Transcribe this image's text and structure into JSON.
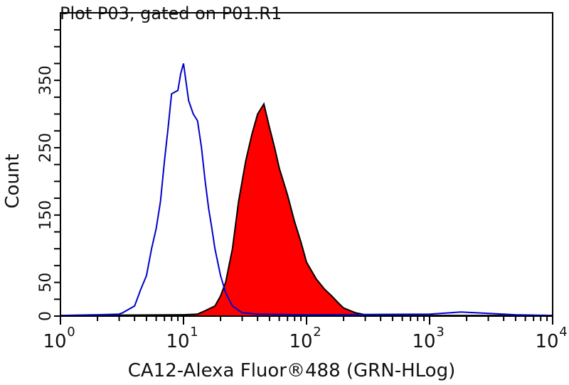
{
  "chart_data": {
    "type": "area",
    "title": "Plot P03, gated on P01.R1",
    "xlabel": "CA12-Alexa Fluor®488 (GRN-HLog)",
    "ylabel": "Count",
    "xscale": "log",
    "xlim": [
      1,
      10000
    ],
    "ylim": [
      0,
      425
    ],
    "x_ticks": [
      {
        "base": "10",
        "exp": "0"
      },
      {
        "base": "10",
        "exp": "1"
      },
      {
        "base": "10",
        "exp": "2"
      },
      {
        "base": "10",
        "exp": "3"
      },
      {
        "base": "10",
        "exp": "4"
      }
    ],
    "y_tick_labels": [
      "0",
      "50",
      "150",
      "250",
      "350"
    ],
    "grid": false,
    "series": [
      {
        "style": "line",
        "color": "#0000cc",
        "x": [
          1,
          2,
          3,
          3.2,
          4,
          4.5,
          5,
          5.5,
          6,
          6.5,
          7,
          7.5,
          8,
          9,
          9.5,
          10,
          11,
          12,
          13,
          14,
          15,
          16,
          17,
          18,
          20,
          22,
          25,
          30,
          40,
          100,
          1000,
          1800,
          5000,
          10000
        ],
        "y": [
          1,
          2,
          3,
          5,
          15,
          40,
          60,
          100,
          130,
          170,
          230,
          280,
          330,
          335,
          360,
          375,
          320,
          300,
          290,
          250,
          200,
          160,
          130,
          100,
          60,
          35,
          15,
          5,
          3,
          2,
          3,
          6,
          2,
          1
        ]
      },
      {
        "style": "filled",
        "color": "#ff0000",
        "line_color": "#000000",
        "x": [
          1,
          10,
          13,
          15,
          18,
          20,
          22,
          25,
          28,
          32,
          36,
          40,
          45,
          50,
          55,
          60,
          70,
          80,
          90,
          100,
          120,
          140,
          160,
          180,
          200,
          250,
          300,
          500,
          10000
        ],
        "y": [
          1,
          2,
          3,
          8,
          15,
          30,
          50,
          100,
          170,
          230,
          270,
          300,
          315,
          280,
          250,
          220,
          180,
          140,
          110,
          80,
          55,
          40,
          30,
          20,
          12,
          5,
          2,
          1,
          1
        ]
      }
    ]
  }
}
